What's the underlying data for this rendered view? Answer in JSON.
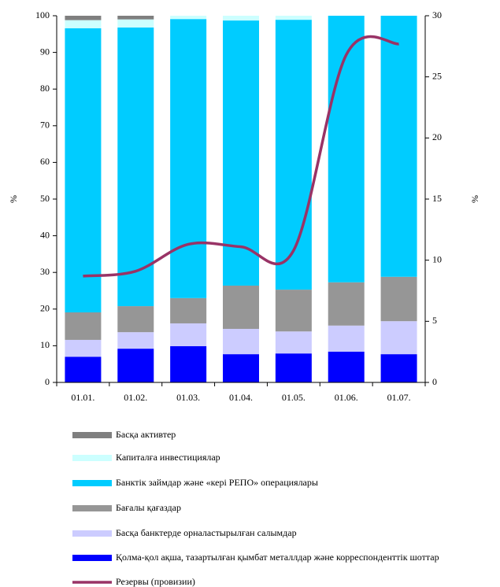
{
  "chart_data": {
    "type": "bar",
    "stacked": true,
    "categories": [
      "01.01.",
      "01.02.",
      "01.03.",
      "01.04.",
      "01.05.",
      "01.06.",
      "01.07."
    ],
    "series": [
      {
        "name": "Қолма-қол ақша, тазартылған қымбат металлдар және корреспонденттік шоттар",
        "color": "#0000ff",
        "values": [
          7,
          9.2,
          9.9,
          7.7,
          7.9,
          8.4,
          7.7
        ]
      },
      {
        "name": "Басқа банктерде орналастырылған салымдар",
        "color": "#ccccff",
        "values": [
          4.6,
          4.5,
          6.2,
          6.9,
          6,
          7.1,
          9
        ]
      },
      {
        "name": "Бағалы қағаздар",
        "color": "#969696",
        "values": [
          7.5,
          7.1,
          6.9,
          11.8,
          11.4,
          11.8,
          12.1
        ]
      },
      {
        "name": "Банктік займдар және «кері РЕПО» операциялары",
        "color": "#00ccff",
        "values": [
          77.5,
          76,
          76.1,
          72.3,
          73.6,
          72.7,
          71.2
        ]
      },
      {
        "name": "Капиталға инвестициялар",
        "color": "#ccffff",
        "values": [
          2.2,
          2.2,
          0.9,
          1.3,
          1.1,
          0,
          0
        ]
      },
      {
        "name": "Басқа активтер",
        "color": "#7f7f7f",
        "values": [
          1.2,
          1,
          0,
          0,
          0,
          0,
          0
        ]
      },
      {
        "name": "Резервы (провизии)",
        "color": "#993366",
        "axis": "y2",
        "type": "line",
        "values": [
          8.7,
          9.1,
          11.3,
          11.1,
          10.8,
          26.8,
          27.7
        ]
      }
    ],
    "ylabel": "%",
    "y2label": "%",
    "ylim": [
      0,
      100
    ],
    "yticks": [
      0,
      10,
      20,
      30,
      40,
      50,
      60,
      70,
      80,
      90,
      100
    ],
    "y2lim": [
      0,
      30
    ],
    "y2ticks": [
      0,
      5,
      10,
      15,
      20,
      25,
      30
    ]
  }
}
